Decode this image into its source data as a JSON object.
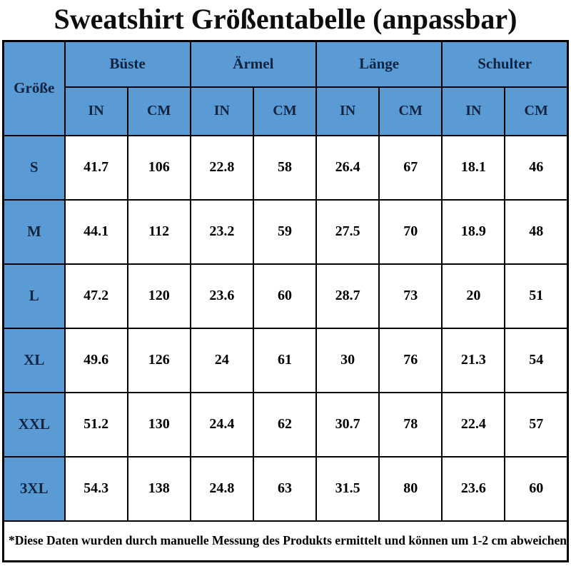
{
  "title": "Sweatshirt Größentabelle (anpassbar)",
  "footnote": "*Diese Daten wurden durch manuelle Messung des Produkts ermittelt und können um 1-2 cm abweichen.",
  "colors": {
    "header_blue": "#5B9BD5",
    "border_black": "#000000",
    "header_text": "#10233f",
    "cell_text": "#000000",
    "background": "#FFFFFF"
  },
  "table": {
    "size_column_header": "Größe",
    "groups": [
      {
        "label": "Büste"
      },
      {
        "label": "Ärmel"
      },
      {
        "label": "Länge"
      },
      {
        "label": "Schulter"
      }
    ],
    "unit_headers": [
      "IN",
      "CM"
    ],
    "rows": [
      {
        "size": "S",
        "values": [
          "41.7",
          "106",
          "22.8",
          "58",
          "26.4",
          "67",
          "18.1",
          "46"
        ]
      },
      {
        "size": "M",
        "values": [
          "44.1",
          "112",
          "23.2",
          "59",
          "27.5",
          "70",
          "18.9",
          "48"
        ]
      },
      {
        "size": "L",
        "values": [
          "47.2",
          "120",
          "23.6",
          "60",
          "28.7",
          "73",
          "20",
          "51"
        ]
      },
      {
        "size": "XL",
        "values": [
          "49.6",
          "126",
          "24",
          "61",
          "30",
          "76",
          "21.3",
          "54"
        ]
      },
      {
        "size": "XXL",
        "values": [
          "51.2",
          "130",
          "24.4",
          "62",
          "30.7",
          "78",
          "22.4",
          "57"
        ]
      },
      {
        "size": "3XL",
        "values": [
          "54.3",
          "138",
          "24.8",
          "63",
          "31.5",
          "80",
          "23.6",
          "60"
        ]
      }
    ]
  },
  "chart_data": {
    "type": "table",
    "title": "Sweatshirt Größentabelle (anpassbar)",
    "columns": [
      "Größe",
      "Büste IN",
      "Büste CM",
      "Ärmel IN",
      "Ärmel CM",
      "Länge IN",
      "Länge CM",
      "Schulter IN",
      "Schulter CM"
    ],
    "rows": [
      [
        "S",
        41.7,
        106,
        22.8,
        58,
        26.4,
        67,
        18.1,
        46
      ],
      [
        "M",
        44.1,
        112,
        23.2,
        59,
        27.5,
        70,
        18.9,
        48
      ],
      [
        "L",
        47.2,
        120,
        23.6,
        60,
        28.7,
        73,
        20,
        51
      ],
      [
        "XL",
        49.6,
        126,
        24,
        61,
        30,
        76,
        21.3,
        54
      ],
      [
        "XXL",
        51.2,
        130,
        24.4,
        62,
        30.7,
        78,
        22.4,
        57
      ],
      [
        "3XL",
        54.3,
        138,
        24.8,
        63,
        31.5,
        80,
        23.6,
        60
      ]
    ],
    "footnote": "*Diese Daten wurden durch manuelle Messung des Produkts ermittelt und können um 1-2 cm abweichen."
  }
}
